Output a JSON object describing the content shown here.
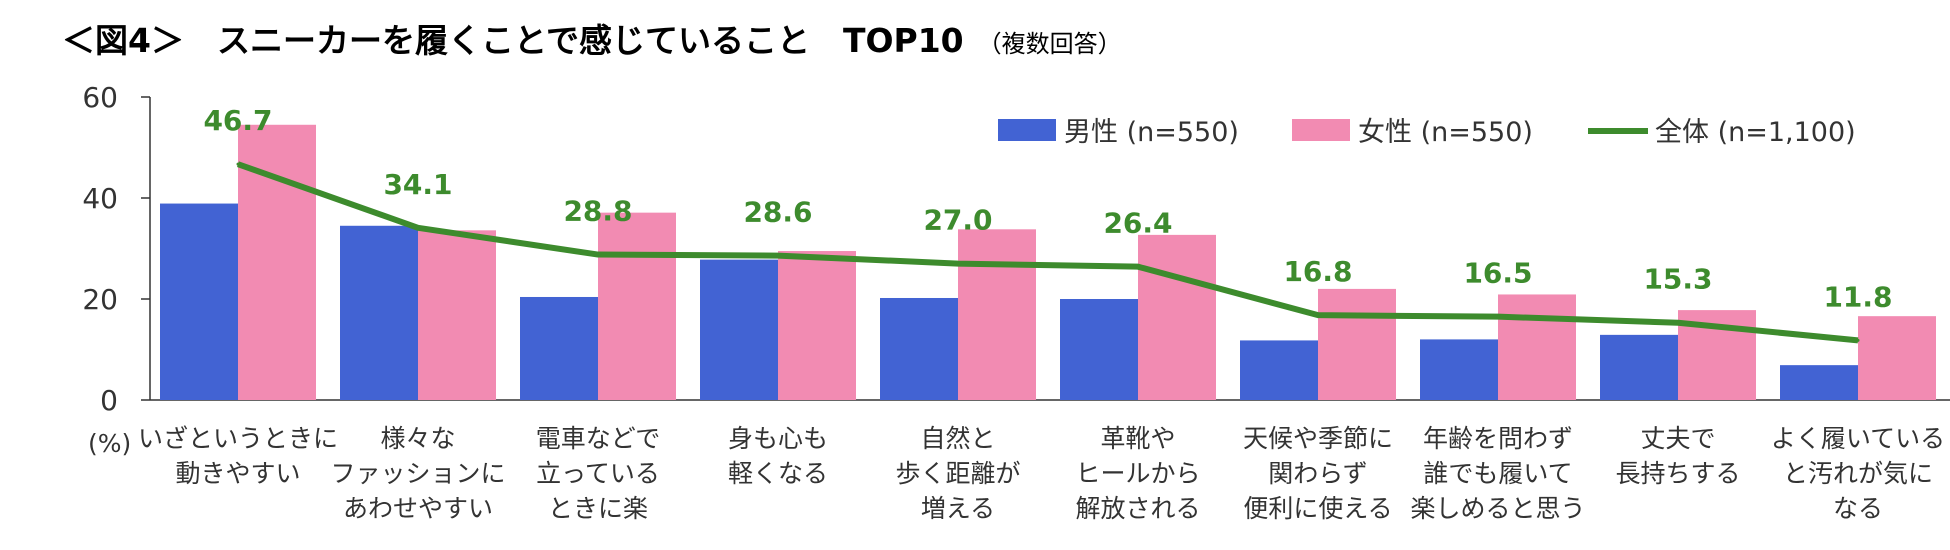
{
  "title": "＜図4＞　スニーカーを履くことで感じていること　TOP10",
  "subtitle": "（複数回答）",
  "chart_data": {
    "type": "bar",
    "title": "＜図4＞　スニーカーを履くことで感じていること　TOP10",
    "subtitle": "（複数回答）",
    "ylabel": "(%)",
    "ylim": [
      0,
      60
    ],
    "yticks": [
      0,
      20,
      40,
      60
    ],
    "grid": false,
    "legend_position": "top-right",
    "categories": [
      [
        "いざというときに",
        "動きやすい"
      ],
      [
        "様々な",
        "ファッションに",
        "あわせやすい"
      ],
      [
        "電車などで",
        "立っている",
        "ときに楽"
      ],
      [
        "身も心も",
        "軽くなる"
      ],
      [
        "自然と",
        "歩く距離が",
        "増える"
      ],
      [
        "革靴や",
        "ヒールから",
        "解放される"
      ],
      [
        "天候や季節に",
        "関わらず",
        "便利に使える"
      ],
      [
        "年齢を問わず",
        "誰でも履いて",
        "楽しめると思う"
      ],
      [
        "丈夫で",
        "長持ちする"
      ],
      [
        "よく履いている",
        "と汚れが気に",
        "なる"
      ]
    ],
    "series": [
      {
        "name": "男性 (n=550)",
        "kind": "bar",
        "color": "#4263d3",
        "values": [
          38.9,
          34.5,
          20.4,
          27.8,
          20.2,
          20.0,
          11.8,
          12.0,
          12.9,
          6.9
        ]
      },
      {
        "name": "女性 (n=550)",
        "kind": "bar",
        "color": "#f28bb2",
        "values": [
          54.5,
          33.6,
          37.1,
          29.5,
          33.8,
          32.7,
          22.0,
          20.9,
          17.8,
          16.6
        ]
      },
      {
        "name": "全体 (n=1,100)",
        "kind": "line",
        "color": "#3d8b2d",
        "values": [
          46.7,
          34.1,
          28.8,
          28.6,
          27.0,
          26.4,
          16.8,
          16.5,
          15.3,
          11.8
        ],
        "labels": [
          "46.7",
          "34.1",
          "28.8",
          "28.6",
          "27.0",
          "26.4",
          "16.8",
          "16.5",
          "15.3",
          "11.8"
        ]
      }
    ]
  }
}
